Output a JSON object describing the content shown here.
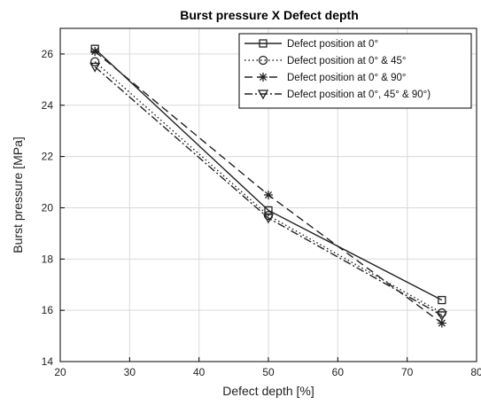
{
  "chart_data": {
    "type": "line",
    "title": "Burst pressure X Defect depth",
    "xlabel": "Defect depth [%]",
    "ylabel": "Burst pressure [MPa]",
    "xlim": [
      20,
      80
    ],
    "ylim": [
      14,
      27
    ],
    "xticks": [
      20,
      30,
      40,
      50,
      60,
      70,
      80
    ],
    "yticks": [
      14,
      16,
      18,
      20,
      22,
      24,
      26
    ],
    "grid": true,
    "legend_position": "top-right",
    "x": [
      25,
      50,
      75
    ],
    "series": [
      {
        "name": "Defect position at 0°",
        "values": [
          26.2,
          19.9,
          16.4
        ],
        "marker": "square",
        "linestyle": "solid"
      },
      {
        "name": "Defect position at 0° & 45°",
        "values": [
          25.7,
          19.7,
          15.9
        ],
        "marker": "circle",
        "linestyle": "dotted"
      },
      {
        "name": "Defect position at 0° & 90°",
        "values": [
          26.1,
          20.5,
          15.5
        ],
        "marker": "asterisk",
        "linestyle": "dashed"
      },
      {
        "name": "Defect position at 0°, 45° & 90°)",
        "values": [
          25.5,
          19.6,
          15.8
        ],
        "marker": "triangle-down",
        "linestyle": "dashdot"
      }
    ]
  }
}
